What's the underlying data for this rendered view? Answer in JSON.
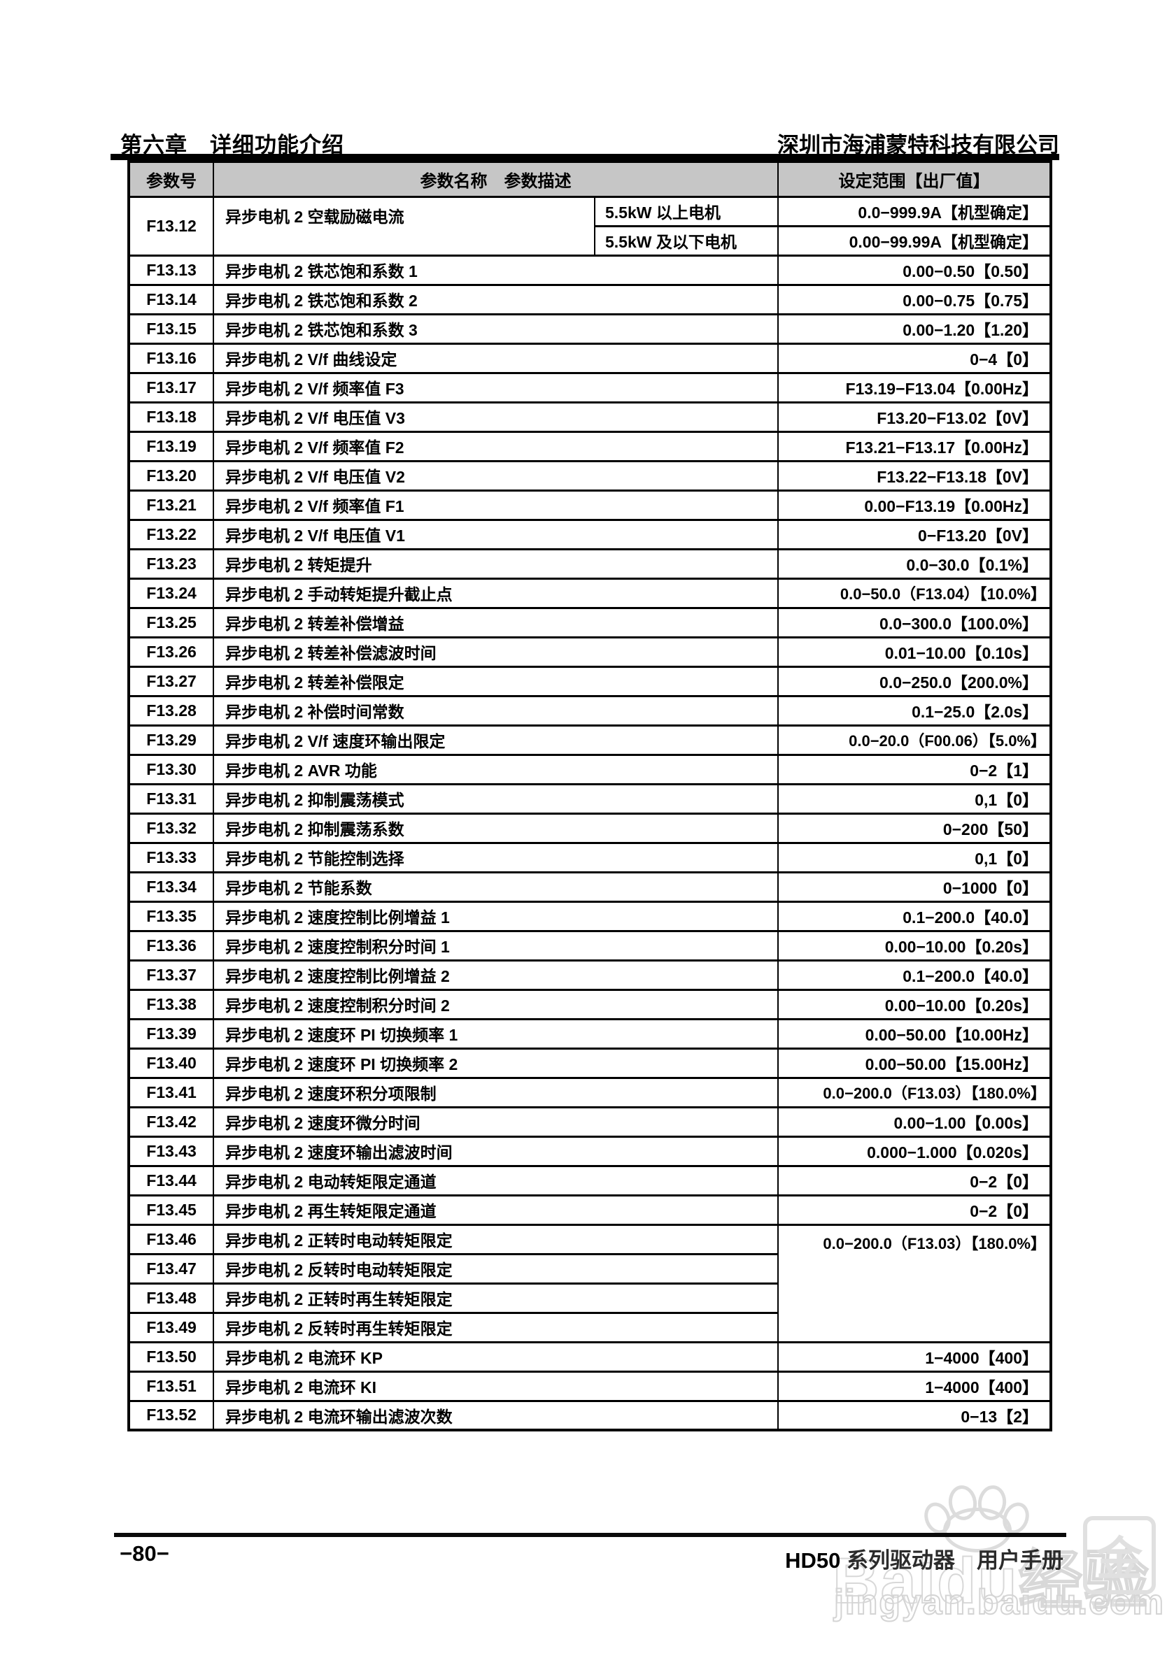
{
  "header": {
    "chapter": "第六章　详细功能介绍",
    "company": "深圳市海浦蒙特科技有限公司"
  },
  "table": {
    "col_param": "参数号",
    "col_name": "参数名称　参数描述",
    "col_range": "设定范围【出厂值】",
    "rows": [
      {
        "no": "F13.12",
        "name": "异步电机 2 空载励磁电流",
        "subs": [
          {
            "desc": "5.5kW 以上电机",
            "range": "0.0−999.9A【机型确定】"
          },
          {
            "desc": "5.5kW 及以下电机",
            "range": "0.00−99.99A【机型确定】"
          }
        ]
      },
      {
        "no": "F13.13",
        "name": "异步电机 2 铁芯饱和系数 1",
        "range": "0.00−0.50【0.50】"
      },
      {
        "no": "F13.14",
        "name": "异步电机 2 铁芯饱和系数 2",
        "range": "0.00−0.75【0.75】"
      },
      {
        "no": "F13.15",
        "name": "异步电机 2 铁芯饱和系数 3",
        "range": "0.00−1.20【1.20】"
      },
      {
        "no": "F13.16",
        "name": "异步电机 2 V/f 曲线设定",
        "range": "0−4【0】"
      },
      {
        "no": "F13.17",
        "name": "异步电机 2 V/f 频率值 F3",
        "range": "F13.19−F13.04【0.00Hz】"
      },
      {
        "no": "F13.18",
        "name": "异步电机 2 V/f 电压值 V3",
        "range": "F13.20−F13.02【0V】"
      },
      {
        "no": "F13.19",
        "name": "异步电机 2 V/f 频率值 F2",
        "range": "F13.21−F13.17【0.00Hz】"
      },
      {
        "no": "F13.20",
        "name": "异步电机 2 V/f 电压值 V2",
        "range": "F13.22−F13.18【0V】"
      },
      {
        "no": "F13.21",
        "name": "异步电机 2 V/f 频率值 F1",
        "range": "0.00−F13.19【0.00Hz】"
      },
      {
        "no": "F13.22",
        "name": "异步电机 2 V/f 电压值 V1",
        "range": "0−F13.20【0V】"
      },
      {
        "no": "F13.23",
        "name": "异步电机 2 转矩提升",
        "range": "0.0−30.0【0.1%】"
      },
      {
        "no": "F13.24",
        "name": "异步电机 2 手动转矩提升截止点",
        "range": "0.0−50.0（F13.04）【10.0%】",
        "tight": true
      },
      {
        "no": "F13.25",
        "name": "异步电机 2 转差补偿增益",
        "range": "0.0−300.0【100.0%】"
      },
      {
        "no": "F13.26",
        "name": "异步电机 2 转差补偿滤波时间",
        "range": "0.01−10.00【0.10s】"
      },
      {
        "no": "F13.27",
        "name": "异步电机 2 转差补偿限定",
        "range": "0.0−250.0【200.0%】"
      },
      {
        "no": "F13.28",
        "name": "异步电机 2 补偿时间常数",
        "range": "0.1−25.0【2.0s】"
      },
      {
        "no": "F13.29",
        "name": "异步电机 2 V/f 速度环输出限定",
        "range": "0.0−20.0（F00.06）【5.0%】",
        "tight": true
      },
      {
        "no": "F13.30",
        "name": "异步电机 2 AVR 功能",
        "range": "0−2【1】"
      },
      {
        "no": "F13.31",
        "name": "异步电机 2 抑制震荡模式",
        "range": "0,1【0】"
      },
      {
        "no": "F13.32",
        "name": "异步电机 2 抑制震荡系数",
        "range": "0−200【50】"
      },
      {
        "no": "F13.33",
        "name": "异步电机 2 节能控制选择",
        "range": "0,1【0】"
      },
      {
        "no": "F13.34",
        "name": "异步电机 2 节能系数",
        "range": "0−1000【0】"
      },
      {
        "no": "F13.35",
        "name": "异步电机 2 速度控制比例增益 1",
        "range": "0.1−200.0【40.0】"
      },
      {
        "no": "F13.36",
        "name": "异步电机 2 速度控制积分时间 1",
        "range": "0.00−10.00【0.20s】"
      },
      {
        "no": "F13.37",
        "name": "异步电机 2 速度控制比例增益 2",
        "range": "0.1−200.0【40.0】"
      },
      {
        "no": "F13.38",
        "name": "异步电机 2 速度控制积分时间 2",
        "range": "0.00−10.00【0.20s】"
      },
      {
        "no": "F13.39",
        "name": "异步电机 2 速度环 PI 切换频率 1",
        "range": "0.00−50.00【10.00Hz】"
      },
      {
        "no": "F13.40",
        "name": "异步电机 2 速度环 PI 切换频率 2",
        "range": "0.00−50.00【15.00Hz】"
      },
      {
        "no": "F13.41",
        "name": "异步电机 2 速度环积分项限制",
        "range": "0.0−200.0（F13.03）【180.0%】",
        "tight": true
      },
      {
        "no": "F13.42",
        "name": "异步电机 2 速度环微分时间",
        "range": "0.00−1.00【0.00s】"
      },
      {
        "no": "F13.43",
        "name": "异步电机 2 速度环输出滤波时间",
        "range": "0.000−1.000【0.020s】"
      },
      {
        "no": "F13.44",
        "name": "异步电机 2 电动转矩限定通道",
        "range": "0−2【0】"
      },
      {
        "no": "F13.45",
        "name": "异步电机 2 再生转矩限定通道",
        "range": "0−2【0】"
      },
      {
        "no": "F13.46",
        "name": "异步电机 2 正转时电动转矩限定",
        "range": "0.0−200.0（F13.03）【180.0%】",
        "tight": true,
        "range_span": 4
      },
      {
        "no": "F13.47",
        "name": "异步电机 2 反转时电动转矩限定",
        "range": null
      },
      {
        "no": "F13.48",
        "name": "异步电机 2 正转时再生转矩限定",
        "range": null
      },
      {
        "no": "F13.49",
        "name": "异步电机 2 反转时再生转矩限定",
        "range": null
      },
      {
        "no": "F13.50",
        "name": "异步电机 2 电流环 KP",
        "range": "1−4000【400】"
      },
      {
        "no": "F13.51",
        "name": "异步电机 2 电流环 KI",
        "range": "1−4000【400】"
      },
      {
        "no": "F13.52",
        "name": "异步电机 2 电流环输出滤波次数",
        "range": "0−13【2】"
      }
    ]
  },
  "footer": {
    "page_no": "−80−",
    "manual_prefix": "HD50",
    "manual_rest": " 系列驱动器　用户手册"
  },
  "watermark": {
    "brand": "Baidu经验",
    "coin": "金",
    "url": "jingyan.baidu.com"
  }
}
